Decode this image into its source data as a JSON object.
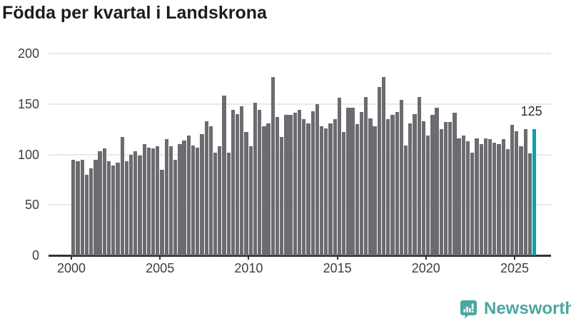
{
  "title": "Födda per kvartal i Landskrona",
  "colors": {
    "bar": "#6b6b70",
    "highlight_bar": "#0aa2a6",
    "grid": "#e9e9e9",
    "axis": "#333333",
    "text": "#3e3e3e",
    "brand_teal": "#4aa8a0"
  },
  "chart_data": {
    "type": "bar",
    "title": "Födda per kvartal i Landskrona",
    "xlabel": "",
    "ylabel": "",
    "ylim": [
      0,
      200
    ],
    "y_ticks": [
      0,
      50,
      100,
      150,
      200
    ],
    "x_ticks": [
      2000,
      2005,
      2010,
      2015,
      2020,
      2025
    ],
    "grid": "horizontal",
    "legend": "none",
    "unit": "births per quarter",
    "years": [
      {
        "year": 2000,
        "values": [
          95,
          93,
          95,
          80
        ]
      },
      {
        "year": 2001,
        "values": [
          86,
          95,
          103,
          106
        ]
      },
      {
        "year": 2002,
        "values": [
          93,
          89,
          92,
          117
        ]
      },
      {
        "year": 2003,
        "values": [
          93,
          100,
          103,
          99
        ]
      },
      {
        "year": 2004,
        "values": [
          110,
          107,
          106,
          108
        ]
      },
      {
        "year": 2005,
        "values": [
          85,
          115,
          108,
          95
        ]
      },
      {
        "year": 2006,
        "values": [
          110,
          114,
          119,
          109
        ]
      },
      {
        "year": 2007,
        "values": [
          107,
          120,
          133,
          128
        ]
      },
      {
        "year": 2008,
        "values": [
          102,
          108,
          158,
          102
        ]
      },
      {
        "year": 2009,
        "values": [
          144,
          140,
          148,
          122
        ]
      },
      {
        "year": 2010,
        "values": [
          108,
          151,
          144,
          128
        ]
      },
      {
        "year": 2011,
        "values": [
          131,
          177,
          137,
          117
        ]
      },
      {
        "year": 2012,
        "values": [
          139,
          139,
          141,
          144
        ]
      },
      {
        "year": 2013,
        "values": [
          135,
          131,
          143,
          150
        ]
      },
      {
        "year": 2014,
        "values": [
          128,
          126,
          131,
          135
        ]
      },
      {
        "year": 2015,
        "values": [
          156,
          122,
          146,
          146
        ]
      },
      {
        "year": 2016,
        "values": [
          130,
          142,
          157,
          136
        ]
      },
      {
        "year": 2017,
        "values": [
          128,
          167,
          177,
          135
        ]
      },
      {
        "year": 2018,
        "values": [
          139,
          142,
          154,
          109
        ]
      },
      {
        "year": 2019,
        "values": [
          131,
          140,
          157,
          133
        ]
      },
      {
        "year": 2020,
        "values": [
          119,
          139,
          146,
          125
        ]
      },
      {
        "year": 2021,
        "values": [
          132,
          132,
          141,
          116
        ]
      },
      {
        "year": 2022,
        "values": [
          119,
          113,
          102,
          116
        ]
      },
      {
        "year": 2023,
        "values": [
          110,
          116,
          115,
          112
        ]
      },
      {
        "year": 2024,
        "values": [
          110,
          115,
          105,
          129
        ]
      },
      {
        "year": 2025,
        "values": [
          123,
          108,
          125,
          101
        ]
      },
      {
        "year": 2026,
        "values": [
          125
        ]
      }
    ],
    "highlight_last": true,
    "annotation": {
      "text": "125",
      "value": 125,
      "quarter": "2026 Q1"
    }
  },
  "branding": {
    "logo_text": "Newsworthy"
  }
}
